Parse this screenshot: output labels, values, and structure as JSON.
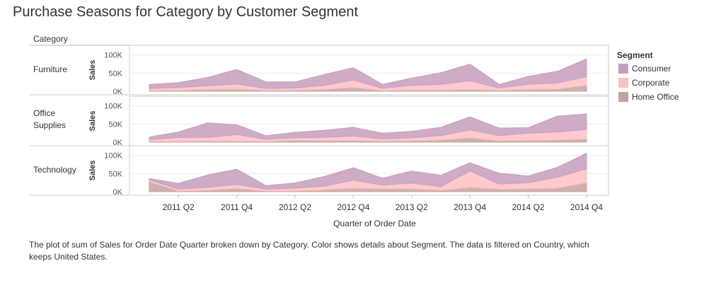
{
  "title": "Purchase Seasons for Category by Customer Segment",
  "footer": "The plot of sum of Sales for Order Date Quarter broken down by Category.  Color shows details about Segment. The data is filtered on Country, which keeps United States.",
  "chart_data": {
    "type": "area",
    "stacked": true,
    "row_header": "Category",
    "xlabel": "Quarter of Order Date",
    "ylabel": "Sales",
    "ylim": [
      0,
      115000
    ],
    "y_ticks": [
      0,
      50000,
      100000
    ],
    "y_tick_labels": [
      "0K",
      "50K",
      "100K"
    ],
    "x": [
      "2011 Q1",
      "2011 Q2",
      "2011 Q3",
      "2011 Q4",
      "2012 Q1",
      "2012 Q2",
      "2012 Q3",
      "2012 Q4",
      "2013 Q1",
      "2013 Q2",
      "2013 Q3",
      "2013 Q4",
      "2014 Q1",
      "2014 Q2",
      "2014 Q3",
      "2014 Q4"
    ],
    "x_tick_labels": [
      "2011 Q2",
      "2011 Q4",
      "2012 Q2",
      "2012 Q4",
      "2013 Q2",
      "2013 Q4",
      "2014 Q2",
      "2014 Q4"
    ],
    "legend": {
      "title": "Segment",
      "placement": "right"
    },
    "segments": [
      {
        "name": "Consumer",
        "color": "#c79dbc"
      },
      {
        "name": "Corporate",
        "color": "#ffbfc6"
      },
      {
        "name": "Home Office",
        "color": "#c4a49a"
      }
    ],
    "panels": [
      {
        "category": "Furniture",
        "series": [
          {
            "name": "Home Office",
            "values": [
              2000,
              3000,
              5000,
              6000,
              3000,
              3000,
              5000,
              11000,
              2000,
              3000,
              3000,
              5000,
              3000,
              5000,
              6000,
              17000
            ]
          },
          {
            "name": "Corporate",
            "values": [
              6000,
              7000,
              10000,
              14000,
              5000,
              6000,
              11000,
              20000,
              6000,
              13000,
              16000,
              24000,
              6000,
              14000,
              17000,
              23000
            ]
          },
          {
            "name": "Consumer",
            "values": [
              11000,
              14000,
              23000,
              40000,
              18000,
              17000,
              30000,
              34000,
              11000,
              20000,
              32000,
              46000,
              10000,
              22000,
              32000,
              49000
            ]
          }
        ]
      },
      {
        "category": "Office Supplies",
        "series": [
          {
            "name": "Home Office",
            "values": [
              2000,
              2000,
              3000,
              3000,
              2000,
              5000,
              4000,
              5000,
              3000,
              4000,
              6000,
              12000,
              4000,
              5000,
              6000,
              9000
            ]
          },
          {
            "name": "Corporate",
            "values": [
              5000,
              11000,
              10000,
              18000,
              6000,
              7000,
              9000,
              12000,
              6000,
              8000,
              12000,
              22000,
              14000,
              20000,
              22000,
              26000
            ]
          },
          {
            "name": "Consumer",
            "values": [
              7000,
              15000,
              40000,
              27000,
              10000,
              15000,
              20000,
              24000,
              16000,
              18000,
              23000,
              36000,
              21000,
              15000,
              44000,
              43000
            ]
          }
        ]
      },
      {
        "category": "Technology",
        "series": [
          {
            "name": "Home Office",
            "values": [
              28000,
              2000,
              4000,
              9000,
              2000,
              2000,
              5000,
              10000,
              8000,
              8000,
              4000,
              12000,
              7000,
              8000,
              10000,
              25000
            ]
          },
          {
            "name": "Corporate",
            "values": [
              5000,
              5000,
              8000,
              11000,
              5000,
              8000,
              10000,
              22000,
              10000,
              16000,
              10000,
              45000,
              14000,
              17000,
              30000,
              38000
            ]
          },
          {
            "name": "Consumer",
            "values": [
              3000,
              16000,
              34000,
              42000,
              10000,
              14000,
              27000,
              34000,
              19000,
              33000,
              31000,
              23000,
              30000,
              18000,
              27000,
              43000
            ]
          }
        ]
      }
    ]
  }
}
